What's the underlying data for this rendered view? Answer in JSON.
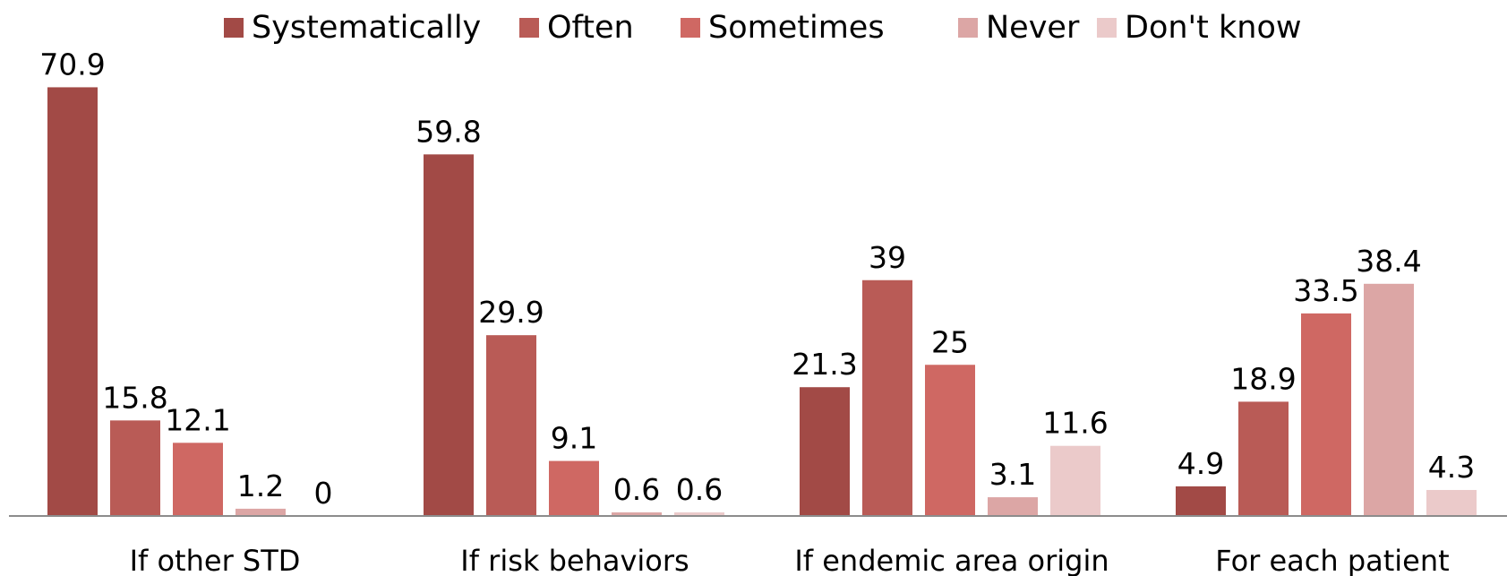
{
  "chart_data": {
    "type": "bar",
    "categories": [
      "If other STD",
      "If  risk behaviors",
      "If endemic area origin",
      "For each patient"
    ],
    "series": [
      {
        "name": "Systematically",
        "color": "#a24a46",
        "values": [
          70.9,
          59.8,
          21.3,
          4.9
        ],
        "labels": [
          "70.9",
          "59.8",
          "21.3",
          "4.9"
        ]
      },
      {
        "name": "Often",
        "color": "#b95b56",
        "values": [
          15.8,
          29.9,
          39,
          18.9
        ],
        "labels": [
          "15.8",
          "29.9",
          "39",
          "18.9"
        ]
      },
      {
        "name": "Sometimes",
        "color": "#cf6863",
        "values": [
          12.1,
          9.1,
          25,
          33.5
        ],
        "labels": [
          "12.1",
          "9.1",
          "25",
          "33.5"
        ]
      },
      {
        "name": "Never",
        "color": "#dca6a5",
        "values": [
          1.2,
          0.6,
          3.1,
          38.4
        ],
        "labels": [
          "1.2",
          "0.6",
          "3.1",
          "38.4"
        ]
      },
      {
        "name": "Don't know",
        "color": "#ebcaca",
        "values": [
          0,
          0.6,
          11.6,
          4.3
        ],
        "labels": [
          "0",
          "0.6",
          "11.6",
          "4.3"
        ]
      }
    ],
    "xlabel": "",
    "ylabel": "",
    "ylim": [
      0,
      75
    ],
    "grid": false,
    "legend": "top"
  }
}
